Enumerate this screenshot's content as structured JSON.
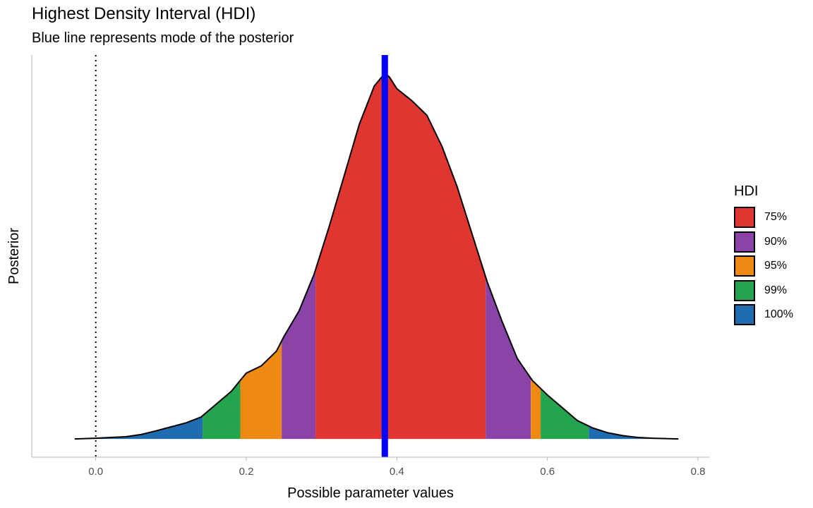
{
  "chart_data": {
    "type": "area",
    "title": "Highest Density Interval (HDI)",
    "subtitle": "Blue line represents mode of the posterior",
    "xlabel": "Possible parameter values",
    "ylabel": "Posterior",
    "xlim": [
      -0.085,
      0.815
    ],
    "xticks": [
      0.0,
      0.2,
      0.4,
      0.6,
      0.8
    ],
    "xtick_labels": [
      "0.0",
      "0.2",
      "0.4",
      "0.6",
      "0.8"
    ],
    "ylim": [
      -0.05,
      1.05
    ],
    "grid": false,
    "mode": 0.384,
    "reference_line": 0.0,
    "density": {
      "x": [
        -0.028,
        0.0,
        0.02,
        0.04,
        0.06,
        0.08,
        0.1,
        0.12,
        0.14,
        0.16,
        0.18,
        0.19,
        0.2,
        0.22,
        0.24,
        0.25,
        0.27,
        0.29,
        0.31,
        0.33,
        0.35,
        0.37,
        0.384,
        0.39,
        0.4,
        0.42,
        0.44,
        0.46,
        0.48,
        0.5,
        0.52,
        0.54,
        0.56,
        0.58,
        0.6,
        0.62,
        0.64,
        0.66,
        0.68,
        0.7,
        0.72,
        0.74,
        0.774
      ],
      "y": [
        0.0,
        0.002,
        0.004,
        0.006,
        0.012,
        0.022,
        0.033,
        0.044,
        0.06,
        0.095,
        0.13,
        0.155,
        0.18,
        0.2,
        0.24,
        0.28,
        0.35,
        0.45,
        0.58,
        0.72,
        0.86,
        0.965,
        1.0,
        0.99,
        0.958,
        0.925,
        0.885,
        0.8,
        0.69,
        0.56,
        0.43,
        0.32,
        0.22,
        0.16,
        0.12,
        0.085,
        0.05,
        0.03,
        0.017,
        0.009,
        0.004,
        0.002,
        0.0
      ]
    },
    "hdi_segments": [
      {
        "label": "100%",
        "from": -0.028,
        "to": 0.142
      },
      {
        "label": "99%",
        "from": 0.142,
        "to": 0.192
      },
      {
        "label": "95%",
        "from": 0.192,
        "to": 0.247
      },
      {
        "label": "90%",
        "from": 0.247,
        "to": 0.292
      },
      {
        "label": "75%",
        "from": 0.292,
        "to": 0.518
      },
      {
        "label": "90%",
        "from": 0.518,
        "to": 0.578
      },
      {
        "label": "95%",
        "from": 0.578,
        "to": 0.591
      },
      {
        "label": "99%",
        "from": 0.591,
        "to": 0.655
      },
      {
        "label": "100%",
        "from": 0.655,
        "to": 0.774
      }
    ],
    "legend": {
      "title": "HDI",
      "position": "right",
      "items": [
        {
          "label": "75%",
          "color": "#E03530"
        },
        {
          "label": "90%",
          "color": "#8A44A8"
        },
        {
          "label": "95%",
          "color": "#EE8A14"
        },
        {
          "label": "99%",
          "color": "#23A44F"
        },
        {
          "label": "100%",
          "color": "#1F6CB0"
        }
      ]
    },
    "colors": {
      "mode_line": "#0000FF",
      "outline": "#000000",
      "axis": "#B3B3B3",
      "tick_text": "#4D4D4D"
    }
  }
}
